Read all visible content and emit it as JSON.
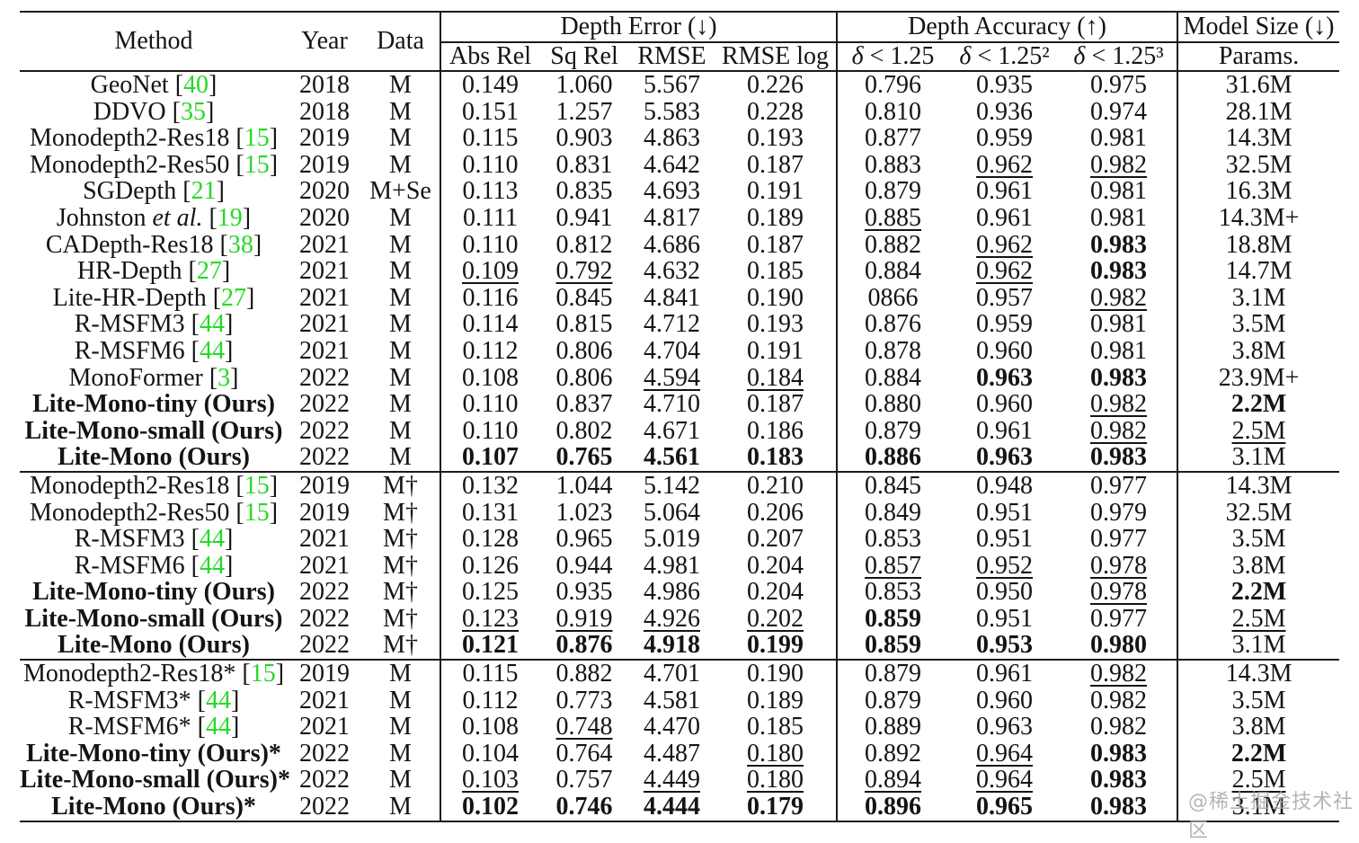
{
  "colors": {
    "background": "#ffffff",
    "text": "#141414",
    "rule_lines": "#1b1b1b",
    "reference_green": "#26d926",
    "watermark_gray": "#a8a8a8"
  },
  "watermark": "@稀土掘金技术社区",
  "table": {
    "header": {
      "method": "Method",
      "year": "Year",
      "data": "Data",
      "error_group": "Depth Error (↓)",
      "accuracy_group": "Depth Accuracy (↑)",
      "size_group": "Model Size (↓)",
      "error_cols": [
        "Abs Rel",
        "Sq Rel",
        "RMSE",
        "RMSE log"
      ],
      "delta_symbol": "δ",
      "delta_tails": [
        " < 1.25",
        " < 1.25²",
        " < 1.25³"
      ],
      "params": "Params."
    },
    "style_legend": {
      "b": "best (bold)",
      "u": "second best (underlined)",
      "g": "green citation number",
      "i": "italic",
      "p": "plain"
    },
    "sections": [
      {
        "rows": [
          {
            "m": [
              [
                "GeoNet [",
                "p"
              ],
              [
                "40",
                "g"
              ],
              [
                "]",
                "p"
              ]
            ],
            "y": "2018",
            "d": "M",
            "c": [
              "0.149",
              "1.060",
              "5.567",
              "0.226",
              "0.796",
              "0.935",
              "0.975",
              "31.6M"
            ]
          },
          {
            "m": [
              [
                "DDVO [",
                "p"
              ],
              [
                "35",
                "g"
              ],
              [
                "]",
                "p"
              ]
            ],
            "y": "2018",
            "d": "M",
            "c": [
              "0.151",
              "1.257",
              "5.583",
              "0.228",
              "0.810",
              "0.936",
              "0.974",
              "28.1M"
            ]
          },
          {
            "m": [
              [
                "Monodepth2-Res18 [",
                "p"
              ],
              [
                "15",
                "g"
              ],
              [
                "]",
                "p"
              ]
            ],
            "y": "2019",
            "d": "M",
            "c": [
              "0.115",
              "0.903",
              "4.863",
              "0.193",
              "0.877",
              "0.959",
              "0.981",
              "14.3M"
            ]
          },
          {
            "m": [
              [
                "Monodepth2-Res50 [",
                "p"
              ],
              [
                "15",
                "g"
              ],
              [
                "]",
                "p"
              ]
            ],
            "y": "2019",
            "d": "M",
            "c": [
              "0.110",
              "0.831",
              "4.642",
              "0.187",
              "0.883",
              "u:0.962",
              "u:0.982",
              "32.5M"
            ]
          },
          {
            "m": [
              [
                "SGDepth [",
                "p"
              ],
              [
                "21",
                "g"
              ],
              [
                "]",
                "p"
              ]
            ],
            "y": "2020",
            "d": "M+Se",
            "c": [
              "0.113",
              "0.835",
              "4.693",
              "0.191",
              "0.879",
              "0.961",
              "0.981",
              "16.3M"
            ]
          },
          {
            "m": [
              [
                "Johnston ",
                "p"
              ],
              [
                "et al. ",
                "i"
              ],
              [
                "[",
                "p"
              ],
              [
                "19",
                "g"
              ],
              [
                "]",
                "p"
              ]
            ],
            "y": "2020",
            "d": "M",
            "c": [
              "0.111",
              "0.941",
              "4.817",
              "0.189",
              "u:0.885",
              "0.961",
              "0.981",
              "14.3M+"
            ]
          },
          {
            "m": [
              [
                "CADepth-Res18 [",
                "p"
              ],
              [
                "38",
                "g"
              ],
              [
                "]",
                "p"
              ]
            ],
            "y": "2021",
            "d": "M",
            "c": [
              "0.110",
              "0.812",
              "4.686",
              "0.187",
              "0.882",
              "u:0.962",
              "b:0.983",
              "18.8M"
            ]
          },
          {
            "m": [
              [
                "HR-Depth [",
                "p"
              ],
              [
                "27",
                "g"
              ],
              [
                "]",
                "p"
              ]
            ],
            "y": "2021",
            "d": "M",
            "c": [
              "u:0.109",
              "u:0.792",
              "4.632",
              "0.185",
              "0.884",
              "u:0.962",
              "b:0.983",
              "14.7M"
            ]
          },
          {
            "m": [
              [
                "Lite-HR-Depth [",
                "p"
              ],
              [
                "27",
                "g"
              ],
              [
                "]",
                "p"
              ]
            ],
            "y": "2021",
            "d": "M",
            "c": [
              "0.116",
              "0.845",
              "4.841",
              "0.190",
              "0866",
              "0.957",
              "u:0.982",
              "3.1M"
            ]
          },
          {
            "m": [
              [
                "R-MSFM3 [",
                "p"
              ],
              [
                "44",
                "g"
              ],
              [
                "]",
                "p"
              ]
            ],
            "y": "2021",
            "d": "M",
            "c": [
              "0.114",
              "0.815",
              "4.712",
              "0.193",
              "0.876",
              "0.959",
              "0.981",
              "3.5M"
            ]
          },
          {
            "m": [
              [
                "R-MSFM6 [",
                "p"
              ],
              [
                "44",
                "g"
              ],
              [
                "]",
                "p"
              ]
            ],
            "y": "2021",
            "d": "M",
            "c": [
              "0.112",
              "0.806",
              "4.704",
              "0.191",
              "0.878",
              "0.960",
              "0.981",
              "3.8M"
            ]
          },
          {
            "m": [
              [
                "MonoFormer [",
                "p"
              ],
              [
                "3",
                "g"
              ],
              [
                "]",
                "p"
              ]
            ],
            "y": "2022",
            "d": "M",
            "c": [
              "0.108",
              "0.806",
              "u:4.594",
              "u:0.184",
              "0.884",
              "b:0.963",
              "b:0.983",
              "23.9M+"
            ]
          },
          {
            "m": [
              [
                "Lite-Mono-tiny (Ours)",
                "b"
              ]
            ],
            "y": "2022",
            "d": "M",
            "c": [
              "0.110",
              "0.837",
              "4.710",
              "0.187",
              "0.880",
              "0.960",
              "u:0.982",
              "b:2.2M"
            ]
          },
          {
            "m": [
              [
                "Lite-Mono-small (Ours)",
                "b"
              ]
            ],
            "y": "2022",
            "d": "M",
            "c": [
              "0.110",
              "0.802",
              "4.671",
              "0.186",
              "0.879",
              "0.961",
              "u:0.982",
              "u:2.5M"
            ]
          },
          {
            "m": [
              [
                "Lite-Mono (Ours)",
                "b"
              ]
            ],
            "y": "2022",
            "d": "M",
            "c": [
              "b:0.107",
              "b:0.765",
              "b:4.561",
              "b:0.183",
              "b:0.886",
              "b:0.963",
              "b:0.983",
              "3.1M"
            ]
          }
        ]
      },
      {
        "rows": [
          {
            "m": [
              [
                "Monodepth2-Res18 [",
                "p"
              ],
              [
                "15",
                "g"
              ],
              [
                "]",
                "p"
              ]
            ],
            "y": "2019",
            "d": "M†",
            "c": [
              "0.132",
              "1.044",
              "5.142",
              "0.210",
              "0.845",
              "0.948",
              "0.977",
              "14.3M"
            ]
          },
          {
            "m": [
              [
                "Monodepth2-Res50 [",
                "p"
              ],
              [
                "15",
                "g"
              ],
              [
                "]",
                "p"
              ]
            ],
            "y": "2019",
            "d": "M†",
            "c": [
              "0.131",
              "1.023",
              "5.064",
              "0.206",
              "0.849",
              "0.951",
              "0.979",
              "32.5M"
            ]
          },
          {
            "m": [
              [
                "R-MSFM3 [",
                "p"
              ],
              [
                "44",
                "g"
              ],
              [
                "]",
                "p"
              ]
            ],
            "y": "2021",
            "d": "M†",
            "c": [
              "0.128",
              "0.965",
              "5.019",
              "0.207",
              "0.853",
              "0.951",
              "0.977",
              "3.5M"
            ]
          },
          {
            "m": [
              [
                "R-MSFM6 [",
                "p"
              ],
              [
                "44",
                "g"
              ],
              [
                "]",
                "p"
              ]
            ],
            "y": "2021",
            "d": "M†",
            "c": [
              "0.126",
              "0.944",
              "4.981",
              "0.204",
              "u:0.857",
              "u:0.952",
              "u:0.978",
              "3.8M"
            ]
          },
          {
            "m": [
              [
                "Lite-Mono-tiny (Ours)",
                "b"
              ]
            ],
            "y": "2022",
            "d": "M†",
            "c": [
              "0.125",
              "0.935",
              "4.986",
              "0.204",
              "0.853",
              "0.950",
              "u:0.978",
              "b:2.2M"
            ]
          },
          {
            "m": [
              [
                "Lite-Mono-small (Ours)",
                "b"
              ]
            ],
            "y": "2022",
            "d": "M†",
            "c": [
              "u:0.123",
              "u:0.919",
              "u:4.926",
              "u:0.202",
              "b:0.859",
              "0.951",
              "0.977",
              "u:2.5M"
            ]
          },
          {
            "m": [
              [
                "Lite-Mono (Ours)",
                "b"
              ]
            ],
            "y": "2022",
            "d": "M†",
            "c": [
              "b:0.121",
              "b:0.876",
              "b:4.918",
              "b:0.199",
              "b:0.859",
              "b:0.953",
              "b:0.980",
              "3.1M"
            ]
          }
        ]
      },
      {
        "rows": [
          {
            "m": [
              [
                "Monodepth2-Res18* [",
                "p"
              ],
              [
                "15",
                "g"
              ],
              [
                "]",
                "p"
              ]
            ],
            "y": "2019",
            "d": "M",
            "c": [
              "0.115",
              "0.882",
              "4.701",
              "0.190",
              "0.879",
              "0.961",
              "u:0.982",
              "14.3M"
            ]
          },
          {
            "m": [
              [
                "R-MSFM3* [",
                "p"
              ],
              [
                "44",
                "g"
              ],
              [
                "]",
                "p"
              ]
            ],
            "y": "2021",
            "d": "M",
            "c": [
              "0.112",
              "0.773",
              "4.581",
              "0.189",
              "0.879",
              "0.960",
              "0.982",
              "3.5M"
            ]
          },
          {
            "m": [
              [
                "R-MSFM6* [",
                "p"
              ],
              [
                "44",
                "g"
              ],
              [
                "]",
                "p"
              ]
            ],
            "y": "2021",
            "d": "M",
            "c": [
              "0.108",
              "u:0.748",
              "4.470",
              "0.185",
              "0.889",
              "0.963",
              "0.982",
              "3.8M"
            ]
          },
          {
            "m": [
              [
                "Lite-Mono-tiny (Ours)*",
                "b"
              ]
            ],
            "y": "2022",
            "d": "M",
            "c": [
              "0.104",
              "0.764",
              "4.487",
              "u:0.180",
              "0.892",
              "u:0.964",
              "b:0.983",
              "b:2.2M"
            ]
          },
          {
            "m": [
              [
                "Lite-Mono-small (Ours)*",
                "b"
              ]
            ],
            "y": "2022",
            "d": "M",
            "c": [
              "u:0.103",
              "0.757",
              "u:4.449",
              "u:0.180",
              "u:0.894",
              "u:0.964",
              "b:0.983",
              "u:2.5M"
            ]
          },
          {
            "m": [
              [
                "Lite-Mono (Ours)*",
                "b"
              ]
            ],
            "y": "2022",
            "d": "M",
            "c": [
              "b:0.102",
              "b:0.746",
              "b:4.444",
              "b:0.179",
              "b:0.896",
              "b:0.965",
              "b:0.983",
              "3.1M"
            ]
          }
        ]
      }
    ]
  }
}
